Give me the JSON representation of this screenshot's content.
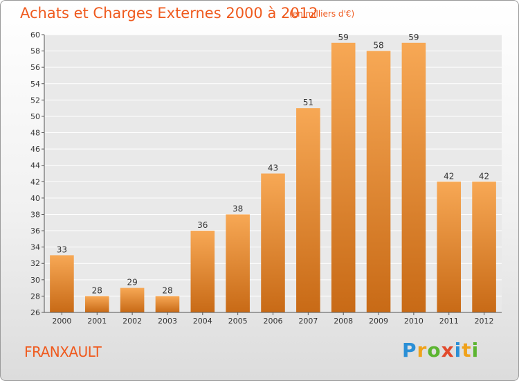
{
  "header": {
    "title": "Achats et Charges Externes 2000 à 2012",
    "subtitle": "(en milliers d'€)"
  },
  "footer": {
    "place_name": "FRANXAULT",
    "logo_text": "Proxiti",
    "logo_colors": [
      "#2a8fd6",
      "#f0a21a",
      "#5cb531",
      "#e24a2c",
      "#2a8fd6",
      "#f0a21a",
      "#5cb531"
    ]
  },
  "chart_data": {
    "type": "bar",
    "title": "Achats et Charges Externes 2000 à 2012",
    "subtitle": "(en milliers d'€)",
    "xlabel": "",
    "ylabel": "",
    "categories": [
      "2000",
      "2001",
      "2002",
      "2003",
      "2004",
      "2005",
      "2006",
      "2007",
      "2008",
      "2009",
      "2010",
      "2011",
      "2012"
    ],
    "values": [
      33,
      28,
      29,
      28,
      36,
      38,
      43,
      51,
      59,
      58,
      59,
      42,
      42
    ],
    "ylim": [
      26,
      60
    ],
    "yticks": [
      26,
      28,
      30,
      32,
      34,
      36,
      38,
      40,
      42,
      44,
      46,
      48,
      50,
      52,
      54,
      56,
      58,
      60
    ],
    "grid": true,
    "legend": "none",
    "bar_color_light": "#f7a855",
    "bar_color_dark": "#c86a16",
    "plot_background": "#e9e9e9",
    "grid_color": "#ffffff"
  }
}
